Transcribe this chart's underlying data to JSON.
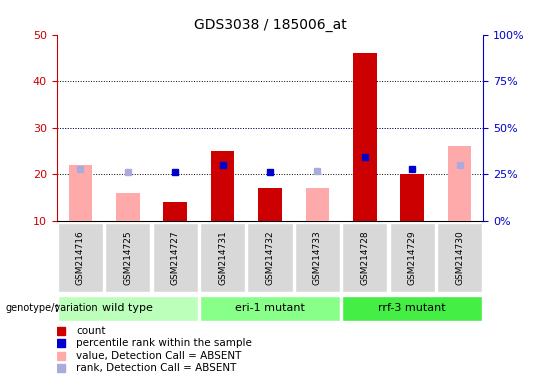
{
  "title": "GDS3038 / 185006_at",
  "samples": [
    "GSM214716",
    "GSM214725",
    "GSM214727",
    "GSM214731",
    "GSM214732",
    "GSM214733",
    "GSM214728",
    "GSM214729",
    "GSM214730"
  ],
  "groups": [
    {
      "label": "wild type",
      "color": "#bbffbb",
      "start": 0,
      "end": 3
    },
    {
      "label": "eri-1 mutant",
      "color": "#88ff88",
      "start": 3,
      "end": 6
    },
    {
      "label": "rrf-3 mutant",
      "color": "#44ee44",
      "start": 6,
      "end": 9
    }
  ],
  "count_values": [
    null,
    null,
    14,
    25,
    17,
    null,
    46,
    20,
    null
  ],
  "count_absent_values": [
    22,
    16,
    null,
    null,
    null,
    17,
    null,
    null,
    26
  ],
  "percentile_values": [
    null,
    null,
    26,
    30,
    26,
    null,
    34,
    28,
    null
  ],
  "percentile_absent_values": [
    28,
    26,
    null,
    null,
    null,
    27,
    null,
    null,
    30
  ],
  "ylim_left": [
    10,
    50
  ],
  "ylim_right": [
    0,
    100
  ],
  "yticks_left": [
    10,
    20,
    30,
    40,
    50
  ],
  "yticks_right": [
    0,
    25,
    50,
    75,
    100
  ],
  "count_color": "#cc0000",
  "count_absent_color": "#ffaaaa",
  "percentile_color": "#0000cc",
  "percentile_absent_color": "#aaaadd",
  "xticklabel_bg": "#d8d8d8",
  "plot_bg": "#ffffff"
}
